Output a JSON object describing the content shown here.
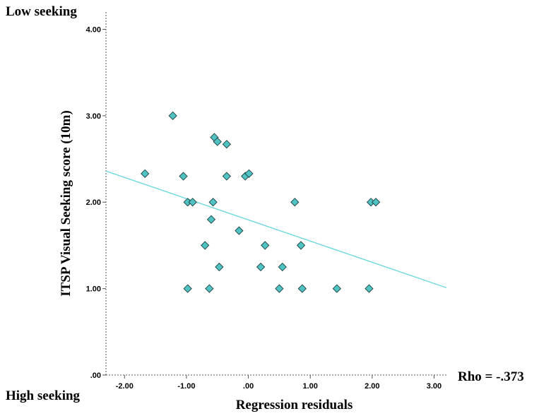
{
  "top_label": "Low seeking",
  "bottom_label": "High seeking",
  "rho_label": "Rho = -.373",
  "colors": {
    "marker_fill": "#4fc3c3",
    "marker_stroke": "#1f3f3f",
    "fit_line": "#6fd8dc",
    "axis": "#555555"
  },
  "chart_data": {
    "type": "scatter",
    "xlabel": "Regression residuals",
    "ylabel": "ITSP Visual Seeking score (10m)",
    "xlim": [
      -2.3,
      3.2
    ],
    "ylim": [
      0,
      4.2
    ],
    "xticks": [
      -2,
      -1,
      0,
      1,
      2,
      3
    ],
    "xtick_labels": [
      "-2.00",
      "-1.00",
      ".00",
      "1.00",
      "2.00",
      "3.00"
    ],
    "yticks": [
      0,
      1,
      2,
      3,
      4
    ],
    "ytick_labels": [
      ".00",
      "1.00",
      "2.00",
      "3.00",
      "4.00"
    ],
    "grid": false,
    "points": [
      {
        "x": -1.67,
        "y": 2.33
      },
      {
        "x": -1.22,
        "y": 3.0
      },
      {
        "x": -1.05,
        "y": 2.3
      },
      {
        "x": -0.98,
        "y": 2.0
      },
      {
        "x": -0.9,
        "y": 2.0
      },
      {
        "x": -0.98,
        "y": 1.0
      },
      {
        "x": -0.55,
        "y": 2.75
      },
      {
        "x": -0.5,
        "y": 2.7
      },
      {
        "x": -0.35,
        "y": 2.67
      },
      {
        "x": -0.35,
        "y": 2.3
      },
      {
        "x": -0.57,
        "y": 2.0
      },
      {
        "x": -0.6,
        "y": 1.8
      },
      {
        "x": -0.7,
        "y": 1.5
      },
      {
        "x": -0.47,
        "y": 1.25
      },
      {
        "x": -0.63,
        "y": 1.0
      },
      {
        "x": -0.05,
        "y": 2.3
      },
      {
        "x": 0.01,
        "y": 2.33
      },
      {
        "x": -0.15,
        "y": 1.67
      },
      {
        "x": 0.27,
        "y": 1.5
      },
      {
        "x": 0.2,
        "y": 1.25
      },
      {
        "x": 0.5,
        "y": 1.0
      },
      {
        "x": 0.55,
        "y": 1.25
      },
      {
        "x": 0.75,
        "y": 2.0
      },
      {
        "x": 0.85,
        "y": 1.5
      },
      {
        "x": 0.87,
        "y": 1.0
      },
      {
        "x": 1.43,
        "y": 1.0
      },
      {
        "x": 1.95,
        "y": 1.0
      },
      {
        "x": 1.98,
        "y": 2.0
      },
      {
        "x": 2.06,
        "y": 2.0
      }
    ],
    "fit_line": {
      "x": [
        -2.3,
        3.2
      ],
      "y": [
        2.36,
        1.01
      ]
    }
  }
}
